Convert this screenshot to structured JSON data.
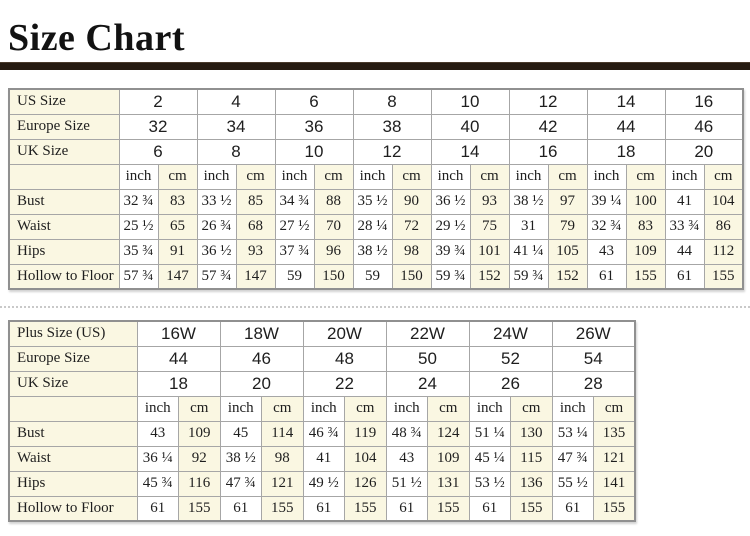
{
  "page": {
    "title": "Size Chart"
  },
  "colors": {
    "cream_cell": "#faf7e2",
    "cell_border": "#a6a6a6",
    "outer_border": "#909090",
    "title_rule": "#261b11",
    "text": "#1e1e1e"
  },
  "units": {
    "inch": "inch",
    "cm": "cm"
  },
  "tables": [
    {
      "name": "standard-sizes",
      "size_rows": [
        {
          "label": "US Size",
          "values": [
            "2",
            "4",
            "6",
            "8",
            "10",
            "12",
            "14",
            "16"
          ]
        },
        {
          "label": "Europe Size",
          "values": [
            "32",
            "34",
            "36",
            "38",
            "40",
            "42",
            "44",
            "46"
          ]
        },
        {
          "label": "UK Size",
          "values": [
            "6",
            "8",
            "10",
            "12",
            "14",
            "16",
            "18",
            "20"
          ]
        }
      ],
      "measure_rows": [
        {
          "label": "Bust",
          "values": [
            "32 ¾",
            "83",
            "33 ½",
            "85",
            "34 ¾",
            "88",
            "35 ½",
            "90",
            "36 ½",
            "93",
            "38 ½",
            "97",
            "39 ¼",
            "100",
            "41",
            "104"
          ]
        },
        {
          "label": "Waist",
          "values": [
            "25 ½",
            "65",
            "26 ¾",
            "68",
            "27 ½",
            "70",
            "28 ¼",
            "72",
            "29 ½",
            "75",
            "31",
            "79",
            "32 ¾",
            "83",
            "33 ¾",
            "86"
          ]
        },
        {
          "label": "Hips",
          "values": [
            "35 ¾",
            "91",
            "36 ½",
            "93",
            "37 ¾",
            "96",
            "38 ½",
            "98",
            "39 ¾",
            "101",
            "41 ¼",
            "105",
            "43",
            "109",
            "44",
            "112"
          ]
        },
        {
          "label": "Hollow to Floor",
          "values": [
            "57 ¾",
            "147",
            "57 ¾",
            "147",
            "59",
            "150",
            "59",
            "150",
            "59 ¾",
            "152",
            "59 ¾",
            "152",
            "61",
            "155",
            "61",
            "155"
          ]
        }
      ]
    },
    {
      "name": "plus-sizes",
      "size_rows": [
        {
          "label": "Plus Size (US)",
          "values": [
            "16W",
            "18W",
            "20W",
            "22W",
            "24W",
            "26W"
          ]
        },
        {
          "label": "Europe Size",
          "values": [
            "44",
            "46",
            "48",
            "50",
            "52",
            "54"
          ]
        },
        {
          "label": "UK Size",
          "values": [
            "18",
            "20",
            "22",
            "24",
            "26",
            "28"
          ]
        }
      ],
      "measure_rows": [
        {
          "label": "Bust",
          "values": [
            "43",
            "109",
            "45",
            "114",
            "46 ¾",
            "119",
            "48 ¾",
            "124",
            "51 ¼",
            "130",
            "53 ¼",
            "135"
          ]
        },
        {
          "label": "Waist",
          "values": [
            "36 ¼",
            "92",
            "38 ½",
            "98",
            "41",
            "104",
            "43",
            "109",
            "45 ¼",
            "115",
            "47 ¾",
            "121"
          ]
        },
        {
          "label": "Hips",
          "values": [
            "45 ¾",
            "116",
            "47 ¾",
            "121",
            "49 ½",
            "126",
            "51 ½",
            "131",
            "53 ½",
            "136",
            "55 ½",
            "141"
          ]
        },
        {
          "label": "Hollow to Floor",
          "values": [
            "61",
            "155",
            "61",
            "155",
            "61",
            "155",
            "61",
            "155",
            "61",
            "155",
            "61",
            "155"
          ]
        }
      ]
    }
  ]
}
